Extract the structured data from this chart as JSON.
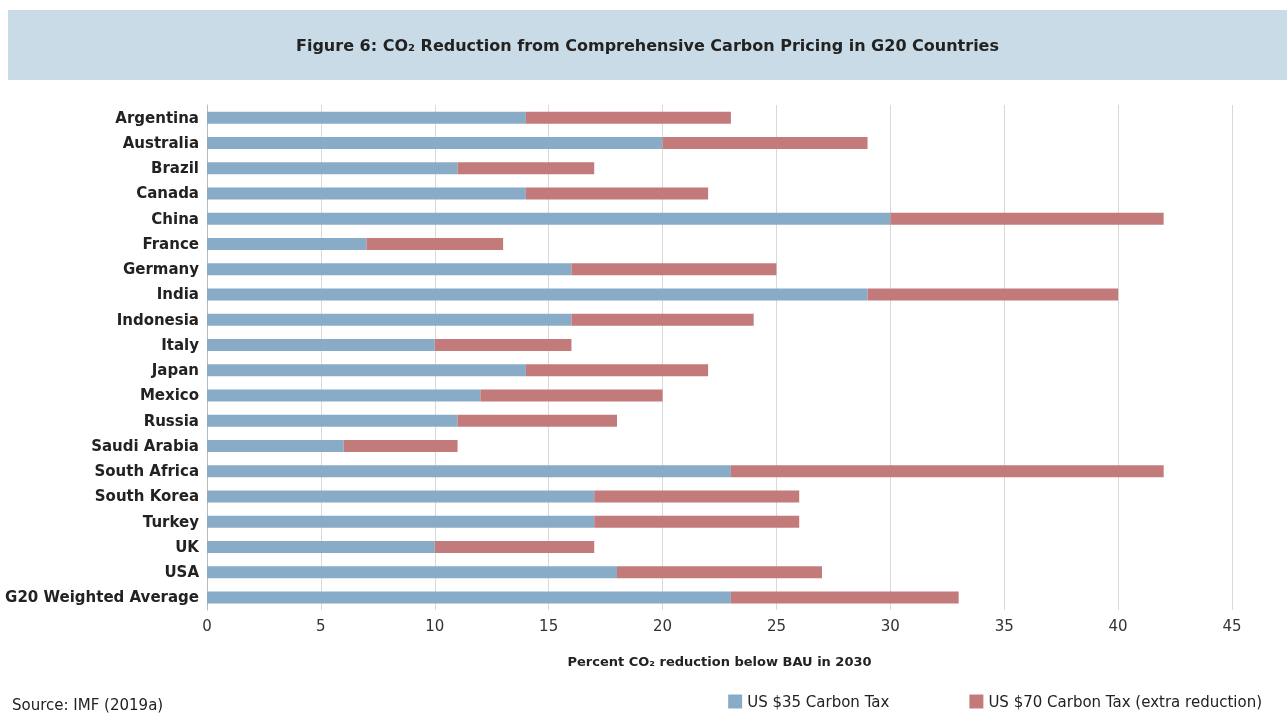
{
  "chart_data": {
    "type": "bar",
    "orientation": "horizontal",
    "stacked": true,
    "title": "Figure 6: CO₂ Reduction from Comprehensive Carbon Pricing in G20 Countries",
    "xlabel": "Percent CO₂ reduction below BAU in 2030",
    "annotations": [
      "Source: IMF (2019a)"
    ],
    "categories": [
      "Argentina",
      "Australia",
      "Brazil",
      "Canada",
      "China",
      "France",
      "Germany",
      "India",
      "Indonesia",
      "Italy",
      "Japan",
      "Mexico",
      "Russia",
      "Saudi Arabia",
      "South Africa",
      "South Korea",
      "Turkey",
      "UK",
      "USA",
      "G20 Weighted Average"
    ],
    "series": [
      {
        "name": "US $35 Carbon Tax",
        "color": "#88abc8",
        "values": [
          14,
          20,
          11,
          14,
          30,
          7,
          16,
          29,
          16,
          10,
          14,
          12,
          11,
          6,
          23,
          17,
          17,
          10,
          18,
          23
        ]
      },
      {
        "name": "US $70 Carbon Tax (extra reduction)",
        "color": "#c27b7a",
        "values": [
          9,
          9,
          6,
          8,
          12,
          6,
          9,
          11,
          8,
          6,
          8,
          8,
          7,
          5,
          19,
          9,
          9,
          7,
          9,
          10
        ]
      }
    ],
    "xlim": [
      0,
      45
    ],
    "xticks": [
      0,
      5,
      10,
      15,
      20,
      25,
      30,
      35,
      40,
      45
    ],
    "grid": "x",
    "legend": "bottom right"
  }
}
